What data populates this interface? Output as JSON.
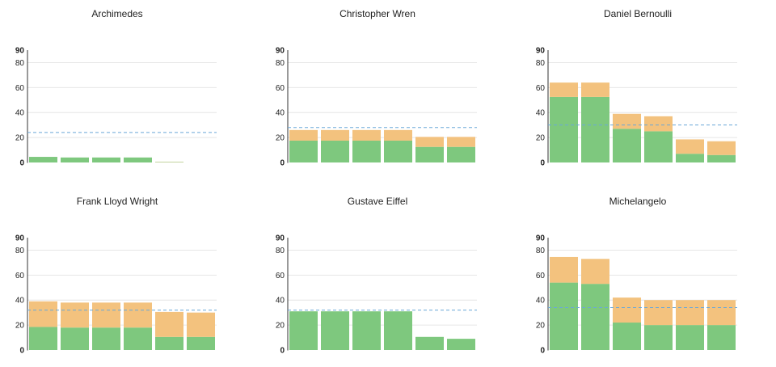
{
  "chart_data": [
    {
      "type": "bar",
      "title": "Archimedes",
      "ylim": [
        0,
        90
      ],
      "yticks": [
        "0",
        "20",
        "40",
        "60",
        "80",
        "90"
      ],
      "stacked": true,
      "reference_line": 24,
      "series": [
        {
          "color": "#7ec87e",
          "values": [
            4.5,
            4,
            4,
            4,
            0.3,
            0
          ]
        },
        {
          "color": "#f3c27e",
          "values": [
            0,
            0,
            0,
            0,
            0.2,
            0
          ]
        }
      ]
    },
    {
      "type": "bar",
      "title": "Christopher Wren",
      "ylim": [
        0,
        90
      ],
      "yticks": [
        "0",
        "20",
        "40",
        "60",
        "80",
        "90"
      ],
      "stacked": true,
      "reference_line": 28,
      "series": [
        {
          "color": "#7ec87e",
          "values": [
            17.5,
            17.5,
            17.5,
            17.5,
            12.5,
            12.5
          ]
        },
        {
          "color": "#f3c27e",
          "values": [
            8.5,
            8.5,
            8.5,
            8.5,
            8,
            8
          ]
        }
      ]
    },
    {
      "type": "bar",
      "title": "Daniel Bernoulli",
      "ylim": [
        0,
        90
      ],
      "yticks": [
        "0",
        "20",
        "40",
        "60",
        "80",
        "90"
      ],
      "stacked": true,
      "reference_line": 30,
      "series": [
        {
          "color": "#7ec87e",
          "values": [
            52.5,
            52.5,
            27,
            25,
            7,
            6
          ]
        },
        {
          "color": "#f3c27e",
          "values": [
            11.5,
            11.5,
            12,
            12,
            11.5,
            11
          ]
        }
      ]
    },
    {
      "type": "bar",
      "title": "Frank Lloyd Wright",
      "ylim": [
        0,
        90
      ],
      "yticks": [
        "0",
        "20",
        "40",
        "60",
        "80",
        "90"
      ],
      "stacked": true,
      "reference_line": 32,
      "series": [
        {
          "color": "#7ec87e",
          "values": [
            18.5,
            18,
            18,
            18,
            10.5,
            10.5
          ]
        },
        {
          "color": "#f3c27e",
          "values": [
            20.5,
            20,
            20,
            20,
            20,
            19.5
          ]
        }
      ]
    },
    {
      "type": "bar",
      "title": "Gustave Eiffel",
      "ylim": [
        0,
        90
      ],
      "yticks": [
        "0",
        "20",
        "40",
        "60",
        "80",
        "90"
      ],
      "stacked": true,
      "reference_line": 32,
      "series": [
        {
          "color": "#7ec87e",
          "values": [
            31,
            31,
            31,
            31,
            10.5,
            9
          ]
        },
        {
          "color": "#f3c27e",
          "values": [
            0,
            0,
            0,
            0,
            0,
            0
          ]
        }
      ]
    },
    {
      "type": "bar",
      "title": "Michelangelo",
      "ylim": [
        0,
        90
      ],
      "yticks": [
        "0",
        "20",
        "40",
        "60",
        "80",
        "90"
      ],
      "stacked": true,
      "reference_line": 34,
      "series": [
        {
          "color": "#7ec87e",
          "values": [
            54,
            53,
            22,
            20,
            20,
            20
          ]
        },
        {
          "color": "#f3c27e",
          "values": [
            20.5,
            20,
            20,
            20,
            20,
            20
          ]
        }
      ]
    }
  ],
  "colors": {
    "grid": "#e6e6e6",
    "axis": "#333333",
    "reference_line": "#6aa8d8",
    "tick_text": "#222222"
  }
}
